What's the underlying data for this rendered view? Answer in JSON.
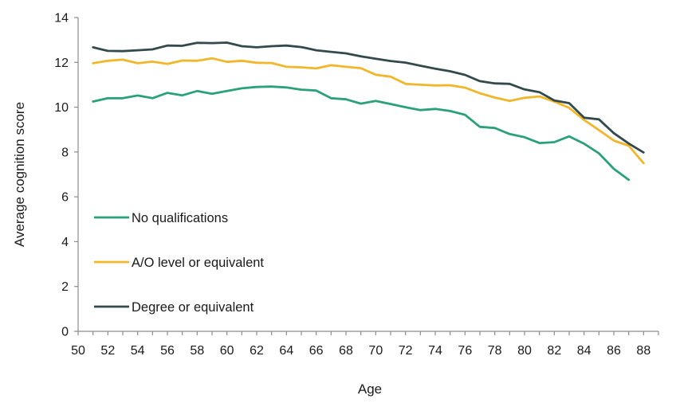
{
  "chart_data": {
    "type": "line",
    "title": "",
    "xlabel": "Age",
    "ylabel": "Average cognition score",
    "xlim": [
      50,
      89
    ],
    "ylim": [
      0,
      14
    ],
    "x_ticks": [
      50,
      52,
      54,
      56,
      58,
      60,
      62,
      64,
      66,
      68,
      70,
      72,
      74,
      76,
      78,
      80,
      82,
      84,
      86,
      88
    ],
    "y_ticks": [
      0,
      2,
      4,
      6,
      8,
      10,
      12,
      14
    ],
    "x_tick_labels": [
      "50",
      "52",
      "54",
      "56",
      "58",
      "60",
      "62",
      "64",
      "66",
      "68",
      "70",
      "72",
      "74",
      "76",
      "78",
      "80",
      "82",
      "84",
      "86",
      "88"
    ],
    "y_tick_labels": [
      "0",
      "2",
      "4",
      "6",
      "8",
      "10",
      "12",
      "14"
    ],
    "grid": false,
    "legend_placement": "left-lower",
    "series": [
      {
        "name": "No qualifications",
        "color": "#2aa07b",
        "x": [
          51,
          52,
          53,
          54,
          55,
          56,
          57,
          58,
          59,
          60,
          61,
          62,
          63,
          64,
          65,
          66,
          67,
          68,
          69,
          70,
          71,
          72,
          73,
          74,
          75,
          76,
          77,
          78,
          79,
          80,
          81,
          82,
          83,
          84,
          85,
          86,
          87
        ],
        "y": [
          10.25,
          10.4,
          10.4,
          10.52,
          10.4,
          10.64,
          10.53,
          10.72,
          10.6,
          10.72,
          10.84,
          10.9,
          10.92,
          10.88,
          10.78,
          10.74,
          10.4,
          10.35,
          10.16,
          10.28,
          10.14,
          10.0,
          9.87,
          9.92,
          9.83,
          9.66,
          9.12,
          9.07,
          8.8,
          8.66,
          8.4,
          8.44,
          8.7,
          8.37,
          7.94,
          7.25,
          6.76
        ]
      },
      {
        "name": "A/O level or equivalent",
        "color": "#f2b62a",
        "x": [
          51,
          52,
          53,
          54,
          55,
          56,
          57,
          58,
          59,
          60,
          61,
          62,
          63,
          64,
          65,
          66,
          67,
          68,
          69,
          70,
          71,
          72,
          73,
          74,
          75,
          76,
          77,
          78,
          79,
          80,
          81,
          82,
          83,
          84,
          85,
          86,
          87,
          88
        ],
        "y": [
          11.96,
          12.07,
          12.12,
          11.96,
          12.03,
          11.93,
          12.08,
          12.07,
          12.18,
          12.02,
          12.07,
          11.98,
          11.97,
          11.8,
          11.78,
          11.73,
          11.87,
          11.8,
          11.74,
          11.45,
          11.36,
          11.04,
          11.0,
          10.97,
          10.98,
          10.87,
          10.62,
          10.43,
          10.28,
          10.42,
          10.48,
          10.25,
          9.97,
          9.43,
          8.98,
          8.51,
          8.28,
          7.5
        ]
      },
      {
        "name": "Degree or equivalent",
        "color": "#334a4c",
        "x": [
          51,
          52,
          53,
          54,
          55,
          56,
          57,
          58,
          59,
          60,
          61,
          62,
          63,
          64,
          65,
          66,
          67,
          68,
          69,
          70,
          71,
          72,
          73,
          74,
          75,
          76,
          77,
          78,
          79,
          80,
          81,
          82,
          83,
          84,
          85,
          86,
          87,
          88
        ],
        "y": [
          12.67,
          12.51,
          12.5,
          12.54,
          12.58,
          12.75,
          12.74,
          12.87,
          12.86,
          12.88,
          12.72,
          12.67,
          12.72,
          12.75,
          12.68,
          12.54,
          12.47,
          12.4,
          12.27,
          12.16,
          12.06,
          11.99,
          11.85,
          11.72,
          11.6,
          11.44,
          11.16,
          11.06,
          11.04,
          10.79,
          10.67,
          10.3,
          10.18,
          9.53,
          9.46,
          8.84,
          8.38,
          7.98
        ]
      }
    ]
  }
}
